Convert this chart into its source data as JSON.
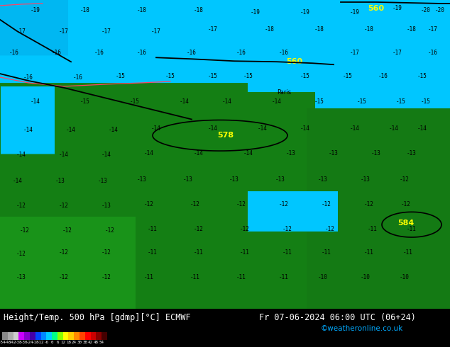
{
  "title_left": "Height/Temp. 500 hPa [gdmp][°C] ECMWF",
  "title_right": "Fr 07-06-2024 06:00 UTC (06+24)",
  "credit": "©weatheronline.co.uk",
  "bg_color": "#000000",
  "title_color": "#FFFFFF",
  "credit_color": "#00AAFF",
  "figsize": [
    6.34,
    4.9
  ],
  "dpi": 100,
  "colorbar_colors": [
    "#888888",
    "#AAAAAA",
    "#CCCCCC",
    "#CC00FF",
    "#8800CC",
    "#4400AA",
    "#0044FF",
    "#0088FF",
    "#00CCFF",
    "#00FF88",
    "#88FF00",
    "#FFFF00",
    "#FFCC00",
    "#FF8800",
    "#FF4400",
    "#FF0000",
    "#CC0000",
    "#880000",
    "#440000"
  ],
  "colorbar_ticks": [
    "-54",
    "-48",
    "-42",
    "-38",
    "-30",
    "-24",
    "-18",
    "-12",
    "-6",
    "0",
    "6",
    "12",
    "18",
    "24",
    "30",
    "38",
    "42",
    "48",
    "54"
  ],
  "contour_labels": [
    [
      50,
      15,
      "-19"
    ],
    [
      120,
      15,
      "-18"
    ],
    [
      200,
      15,
      "-18"
    ],
    [
      280,
      15,
      "-18"
    ],
    [
      360,
      18,
      "-19"
    ],
    [
      430,
      18,
      "-19"
    ],
    [
      500,
      18,
      "-19"
    ],
    [
      560,
      12,
      "-19"
    ],
    [
      600,
      15,
      "-20"
    ],
    [
      620,
      15,
      "-20"
    ],
    [
      30,
      45,
      "-17"
    ],
    [
      90,
      45,
      "-17"
    ],
    [
      150,
      45,
      "-17"
    ],
    [
      220,
      45,
      "-17"
    ],
    [
      300,
      42,
      "-17"
    ],
    [
      380,
      42,
      "-18"
    ],
    [
      450,
      42,
      "-18"
    ],
    [
      520,
      42,
      "-18"
    ],
    [
      580,
      42,
      "-18"
    ],
    [
      610,
      42,
      "-17"
    ],
    [
      20,
      75,
      "-16"
    ],
    [
      80,
      75,
      "-16"
    ],
    [
      140,
      75,
      "-16"
    ],
    [
      200,
      75,
      "-16"
    ],
    [
      270,
      75,
      "-16"
    ],
    [
      340,
      75,
      "-16"
    ],
    [
      400,
      75,
      "-16"
    ],
    [
      500,
      75,
      "-17"
    ],
    [
      560,
      75,
      "-17"
    ],
    [
      610,
      75,
      "-16"
    ],
    [
      40,
      110,
      "-16"
    ],
    [
      110,
      110,
      "-16"
    ],
    [
      170,
      108,
      "-15"
    ],
    [
      240,
      108,
      "-15"
    ],
    [
      300,
      108,
      "-15"
    ],
    [
      350,
      108,
      "-15"
    ],
    [
      430,
      108,
      "-15"
    ],
    [
      490,
      108,
      "-15"
    ],
    [
      540,
      108,
      "-16"
    ],
    [
      595,
      108,
      "-15"
    ],
    [
      50,
      145,
      "-14"
    ],
    [
      120,
      145,
      "-15"
    ],
    [
      190,
      145,
      "-15"
    ],
    [
      260,
      145,
      "-14"
    ],
    [
      320,
      145,
      "-14"
    ],
    [
      390,
      145,
      "-14"
    ],
    [
      450,
      145,
      "-15"
    ],
    [
      510,
      145,
      "-15"
    ],
    [
      565,
      145,
      "-15"
    ],
    [
      600,
      145,
      "-15"
    ],
    [
      40,
      185,
      "-14"
    ],
    [
      100,
      185,
      "-14"
    ],
    [
      160,
      185,
      "-14"
    ],
    [
      220,
      183,
      "-14"
    ],
    [
      300,
      183,
      "-14"
    ],
    [
      370,
      183,
      "-14"
    ],
    [
      430,
      183,
      "-14"
    ],
    [
      500,
      183,
      "-14"
    ],
    [
      555,
      183,
      "-14"
    ],
    [
      595,
      183,
      "-14"
    ],
    [
      30,
      220,
      "-14"
    ],
    [
      90,
      220,
      "-14"
    ],
    [
      150,
      220,
      "-14"
    ],
    [
      210,
      218,
      "-14"
    ],
    [
      280,
      218,
      "-14"
    ],
    [
      350,
      218,
      "-14"
    ],
    [
      410,
      218,
      "-13"
    ],
    [
      470,
      218,
      "-13"
    ],
    [
      530,
      218,
      "-13"
    ],
    [
      580,
      218,
      "-13"
    ],
    [
      25,
      258,
      "-14"
    ],
    [
      85,
      258,
      "-13"
    ],
    [
      145,
      258,
      "-13"
    ],
    [
      200,
      256,
      "-13"
    ],
    [
      265,
      256,
      "-13"
    ],
    [
      330,
      256,
      "-13"
    ],
    [
      395,
      256,
      "-13"
    ],
    [
      455,
      256,
      "-13"
    ],
    [
      515,
      256,
      "-13"
    ],
    [
      570,
      256,
      "-12"
    ],
    [
      30,
      293,
      "-12"
    ],
    [
      90,
      293,
      "-12"
    ],
    [
      150,
      293,
      "-13"
    ],
    [
      210,
      291,
      "-12"
    ],
    [
      275,
      291,
      "-12"
    ],
    [
      340,
      291,
      "-12"
    ],
    [
      400,
      291,
      "-12"
    ],
    [
      460,
      291,
      "-12"
    ],
    [
      520,
      291,
      "-12"
    ],
    [
      572,
      291,
      "-12"
    ],
    [
      35,
      328,
      "-12"
    ],
    [
      95,
      328,
      "-12"
    ],
    [
      155,
      328,
      "-12"
    ],
    [
      215,
      326,
      "-11"
    ],
    [
      280,
      326,
      "-12"
    ],
    [
      345,
      326,
      "-12"
    ],
    [
      405,
      326,
      "-12"
    ],
    [
      465,
      326,
      "-12"
    ],
    [
      525,
      326,
      "-11"
    ],
    [
      580,
      326,
      "-11"
    ],
    [
      30,
      362,
      "-12"
    ],
    [
      90,
      360,
      "-12"
    ],
    [
      150,
      360,
      "-12"
    ],
    [
      215,
      360,
      "-11"
    ],
    [
      280,
      360,
      "-11"
    ],
    [
      345,
      360,
      "-11"
    ],
    [
      405,
      360,
      "-11"
    ],
    [
      460,
      360,
      "-11"
    ],
    [
      520,
      360,
      "-11"
    ],
    [
      575,
      360,
      "-11"
    ],
    [
      30,
      395,
      "-13"
    ],
    [
      90,
      395,
      "-12"
    ],
    [
      150,
      395,
      "-12"
    ],
    [
      210,
      395,
      "-11"
    ],
    [
      275,
      395,
      "-11"
    ],
    [
      340,
      395,
      "-11"
    ],
    [
      400,
      395,
      "-11"
    ],
    [
      455,
      395,
      "-10"
    ],
    [
      515,
      395,
      "-10"
    ],
    [
      570,
      395,
      "-10"
    ]
  ],
  "geo_labels": [
    [
      530,
      12,
      "560",
      "#FFFF00"
    ],
    [
      415,
      88,
      "560",
      "#FFFF00"
    ],
    [
      318,
      193,
      "578",
      "#FFFF00"
    ],
    [
      572,
      318,
      "584",
      "#FFFF00"
    ]
  ],
  "paris_label": [
    400,
    132,
    "Paris"
  ]
}
